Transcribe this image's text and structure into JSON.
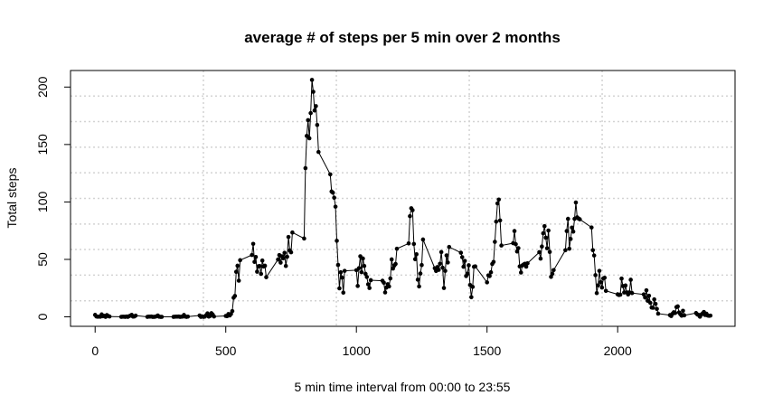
{
  "chart_data": {
    "type": "line",
    "title": "average # of steps per 5 min over 2 months",
    "x_label": "5 min time interval from 00:00 to 23:55",
    "y_label": "Total steps",
    "xlim": [
      -94.2,
      2449.2
    ],
    "ylim": [
      -8.25,
      214.4
    ],
    "xticks": [
      0,
      500,
      1000,
      1500,
      2000
    ],
    "yticks": [
      0,
      50,
      100,
      150,
      200
    ],
    "grid_x": [
      414.5,
      923.3,
      1432.0,
      1940.7
    ],
    "grid_y": [
      14.0,
      36.3,
      58.6,
      80.8,
      103.1,
      125.4,
      147.6,
      169.9,
      192.2
    ],
    "color": "#000000",
    "x": [
      0,
      5,
      10,
      15,
      20,
      25,
      30,
      35,
      40,
      45,
      50,
      55,
      100,
      105,
      110,
      115,
      120,
      125,
      130,
      135,
      140,
      145,
      150,
      155,
      200,
      205,
      210,
      215,
      220,
      225,
      230,
      235,
      240,
      245,
      250,
      255,
      300,
      305,
      310,
      315,
      320,
      325,
      330,
      335,
      340,
      345,
      350,
      355,
      400,
      405,
      410,
      415,
      420,
      425,
      430,
      435,
      440,
      445,
      450,
      455,
      500,
      505,
      510,
      515,
      520,
      525,
      530,
      535,
      540,
      545,
      550,
      555,
      600,
      605,
      610,
      615,
      620,
      625,
      630,
      635,
      640,
      645,
      650,
      655,
      700,
      705,
      710,
      715,
      720,
      725,
      730,
      735,
      740,
      745,
      750,
      755,
      800,
      805,
      810,
      815,
      820,
      825,
      830,
      835,
      840,
      845,
      850,
      855,
      900,
      905,
      910,
      915,
      920,
      925,
      930,
      935,
      940,
      945,
      950,
      955,
      1000,
      1005,
      1010,
      1015,
      1020,
      1025,
      1030,
      1035,
      1040,
      1045,
      1050,
      1055,
      1100,
      1105,
      1110,
      1115,
      1120,
      1125,
      1130,
      1135,
      1140,
      1145,
      1150,
      1155,
      1200,
      1205,
      1210,
      1215,
      1220,
      1225,
      1230,
      1235,
      1240,
      1245,
      1250,
      1255,
      1300,
      1305,
      1310,
      1315,
      1320,
      1325,
      1330,
      1335,
      1340,
      1345,
      1350,
      1355,
      1400,
      1405,
      1410,
      1415,
      1420,
      1425,
      1430,
      1435,
      1440,
      1445,
      1450,
      1455,
      1500,
      1505,
      1510,
      1515,
      1520,
      1525,
      1530,
      1535,
      1540,
      1545,
      1550,
      1555,
      1600,
      1605,
      1610,
      1615,
      1620,
      1625,
      1630,
      1635,
      1640,
      1645,
      1650,
      1655,
      1700,
      1705,
      1710,
      1715,
      1720,
      1725,
      1730,
      1735,
      1740,
      1745,
      1750,
      1755,
      1800,
      1805,
      1810,
      1815,
      1820,
      1825,
      1830,
      1835,
      1840,
      1845,
      1850,
      1855,
      1900,
      1905,
      1910,
      1915,
      1920,
      1925,
      1930,
      1935,
      1940,
      1945,
      1950,
      1955,
      2000,
      2005,
      2010,
      2015,
      2020,
      2025,
      2030,
      2035,
      2040,
      2045,
      2050,
      2055,
      2100,
      2105,
      2110,
      2115,
      2120,
      2125,
      2130,
      2135,
      2140,
      2145,
      2150,
      2155,
      2200,
      2205,
      2210,
      2215,
      2220,
      2225,
      2230,
      2235,
      2240,
      2245,
      2250,
      2255,
      2300,
      2305,
      2310,
      2315,
      2320,
      2325,
      2330,
      2335,
      2340,
      2345,
      2350,
      2355
    ],
    "values": [
      1.7,
      0.3,
      0.1,
      0.2,
      0.1,
      2.1,
      0.5,
      0.9,
      0,
      1.5,
      0.8,
      0.3,
      0,
      0.1,
      0.1,
      0,
      0.3,
      0,
      0.6,
      1.1,
      1.7,
      0.2,
      0.3,
      1.1,
      0,
      0.2,
      0.2,
      0.3,
      0,
      0,
      0.1,
      0.5,
      1.2,
      0.1,
      0,
      0,
      0,
      0.1,
      0.2,
      0.2,
      0.3,
      0,
      0.1,
      0.2,
      1.6,
      0.2,
      0,
      0.2,
      1.2,
      0,
      0.4,
      0,
      0.2,
      1.4,
      3.0,
      0.2,
      0.8,
      3.2,
      2.0,
      0.3,
      0.8,
      0.6,
      2.4,
      1.2,
      2.5,
      5.0,
      16.6,
      18.2,
      39.2,
      44.5,
      31.5,
      49.3,
      53.8,
      63.5,
      47.8,
      52.1,
      39.3,
      44.0,
      44.2,
      37.4,
      49.0,
      43.8,
      44.5,
      34.5,
      49.9,
      53.8,
      47.2,
      52.7,
      51.0,
      55.7,
      44.3,
      52.3,
      69.5,
      57.8,
      56.2,
      73.4,
      68.2,
      129.4,
      157.5,
      171.2,
      155.4,
      177.3,
      206.2,
      195.9,
      179.6,
      183.4,
      167.0,
      143.5,
      124.0,
      109.1,
      108.1,
      103.7,
      95.9,
      66.2,
      45.2,
      24.8,
      38.8,
      34.1,
      21.1,
      40.0,
      40.6,
      26.9,
      42.4,
      52.7,
      38.9,
      50.8,
      44.3,
      37.4,
      34.7,
      28.3,
      25.1,
      31.9,
      31.4,
      29.7,
      21.3,
      25.5,
      28.4,
      26.5,
      33.4,
      50.0,
      42.0,
      44.6,
      46.0,
      59.3,
      63.9,
      87.6,
      94.5,
      92.8,
      63.4,
      50.2,
      54.5,
      32.4,
      26.5,
      37.7,
      45.1,
      67.3,
      42.3,
      39.9,
      43.3,
      40.9,
      46.2,
      56.4,
      42.8,
      25.1,
      40.0,
      53.5,
      47.3,
      60.8,
      55.8,
      51.9,
      43.6,
      48.7,
      35.5,
      37.5,
      44.9,
      27.7,
      17.1,
      26.1,
      43.6,
      43.9,
      30.0,
      36.1,
      35.5,
      38.8,
      46.0,
      47.8,
      65.3,
      82.9,
      98.7,
      102.1,
      83.9,
      62.1,
      64.1,
      74.7,
      63.2,
      56.9,
      59.8,
      43.9,
      38.6,
      44.7,
      45.5,
      46.2,
      43.7,
      46.6,
      56.3,
      50.7,
      61.2,
      72.7,
      78.9,
      68.9,
      59.7,
      75.1,
      56.5,
      34.8,
      37.5,
      40.7,
      58.0,
      74.7,
      85.3,
      59.3,
      67.8,
      77.7,
      74.2,
      85.3,
      99.5,
      86.6,
      85.6,
      84.9,
      77.8,
      58.0,
      53.4,
      36.3,
      20.7,
      27.4,
      40.0,
      30.2,
      25.5,
      33.4,
      34.0,
      22.6,
      19.6,
      19.0,
      19.3,
      33.3,
      26.8,
      21.2,
      27.3,
      21.3,
      19.5,
      21.3,
      32.3,
      20.7,
      19.5,
      16.8,
      23.1,
      14.0,
      18.4,
      12.2,
      8.1,
      7.9,
      15.2,
      11.3,
      6.9,
      2.8,
      1.5,
      0.7,
      2.7,
      4.0,
      3.4,
      8.5,
      9.1,
      3.8,
      2.3,
      1.0,
      5.3,
      1.3,
      3.3,
      2.1,
      1.6,
      0.1,
      1.9,
      2.9,
      4.2,
      1.6,
      2.7,
      1.1,
      0.9,
      1.1
    ]
  }
}
